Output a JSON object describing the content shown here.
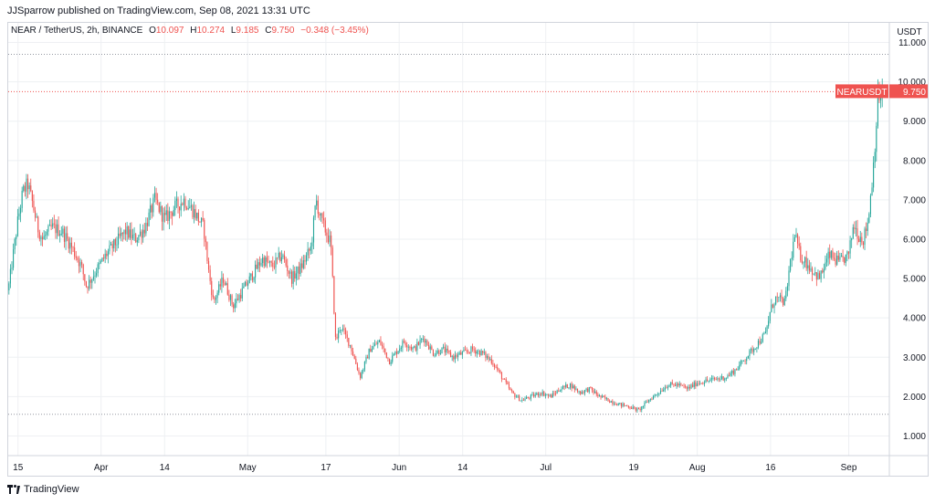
{
  "publisher": {
    "text": "JJSparrow published on TradingView.com, Sep 08, 2021 13:31 UTC"
  },
  "legend": {
    "symbol": "NEAR / TetherUS, 2h, BINANCE",
    "open_label": "O",
    "open": "10.097",
    "high_label": "H",
    "high": "10.274",
    "low_label": "L",
    "low": "9.185",
    "close_label": "C",
    "close": "9.750",
    "change": "−0.348 (−3.45%)"
  },
  "footer": {
    "brand": "TradingView"
  },
  "colors": {
    "up": "#26a69a",
    "down": "#ef5350",
    "grid": "#eef0f3",
    "axis_text": "#131722",
    "price_line": "#ef5350",
    "dotted_line": "#9598a1"
  },
  "chart_data": {
    "type": "candlestick",
    "symbol": "NEARUSDT",
    "currency": "USDT",
    "interval": "2h",
    "exchange": "BINANCE",
    "last_price": 9.75,
    "last_price_label": "9.750",
    "high_line": 10.7,
    "low_line": 1.55,
    "ylim": [
      0.5,
      11.5
    ],
    "y_ticks": [
      {
        "value": 1,
        "label": "1.000"
      },
      {
        "value": 2,
        "label": "2.000"
      },
      {
        "value": 3,
        "label": "3.000"
      },
      {
        "value": 4,
        "label": "4.000"
      },
      {
        "value": 5,
        "label": "5.000"
      },
      {
        "value": 6,
        "label": "6.000"
      },
      {
        "value": 7,
        "label": "7.000"
      },
      {
        "value": 8,
        "label": "8.000"
      },
      {
        "value": 9,
        "label": "9.000"
      },
      {
        "value": 10,
        "label": "10.000"
      },
      {
        "value": 11,
        "label": "11.000"
      }
    ],
    "x_range": [
      "2021-03-13",
      "2021-09-08"
    ],
    "x_ticks": [
      {
        "date": "2021-03-15",
        "label": "15"
      },
      {
        "date": "2021-04-01",
        "label": "Apr"
      },
      {
        "date": "2021-04-14",
        "label": "14"
      },
      {
        "date": "2021-05-01",
        "label": "May"
      },
      {
        "date": "2021-05-17",
        "label": "17"
      },
      {
        "date": "2021-06-01",
        "label": "Jun"
      },
      {
        "date": "2021-06-14",
        "label": "14"
      },
      {
        "date": "2021-07-01",
        "label": "Jul"
      },
      {
        "date": "2021-07-19",
        "label": "19"
      },
      {
        "date": "2021-08-01",
        "label": "Aug"
      },
      {
        "date": "2021-08-16",
        "label": "16"
      },
      {
        "date": "2021-09-01",
        "label": "Sep"
      }
    ],
    "price_path": [
      [
        "2021-03-13",
        4.7
      ],
      [
        "2021-03-14",
        5.6
      ],
      [
        "2021-03-15",
        6.5
      ],
      [
        "2021-03-16",
        7.2
      ],
      [
        "2021-03-17",
        7.4
      ],
      [
        "2021-03-18",
        6.9
      ],
      [
        "2021-03-19",
        6.3
      ],
      [
        "2021-03-20",
        6.0
      ],
      [
        "2021-03-22",
        6.3
      ],
      [
        "2021-03-24",
        6.2
      ],
      [
        "2021-03-26",
        5.8
      ],
      [
        "2021-03-28",
        5.3
      ],
      [
        "2021-03-29",
        4.8
      ],
      [
        "2021-03-31",
        5.2
      ],
      [
        "2021-04-02",
        5.6
      ],
      [
        "2021-04-04",
        5.9
      ],
      [
        "2021-04-06",
        6.2
      ],
      [
        "2021-04-08",
        6.0
      ],
      [
        "2021-04-10",
        6.3
      ],
      [
        "2021-04-12",
        7.0
      ],
      [
        "2021-04-14",
        6.5
      ],
      [
        "2021-04-16",
        6.8
      ],
      [
        "2021-04-18",
        7.0
      ],
      [
        "2021-04-20",
        6.7
      ],
      [
        "2021-04-22",
        6.3
      ],
      [
        "2021-04-23",
        5.2
      ],
      [
        "2021-04-24",
        4.4
      ],
      [
        "2021-04-26",
        5.0
      ],
      [
        "2021-04-28",
        4.3
      ],
      [
        "2021-04-30",
        4.7
      ],
      [
        "2021-05-02",
        5.1
      ],
      [
        "2021-05-04",
        5.5
      ],
      [
        "2021-05-06",
        5.3
      ],
      [
        "2021-05-08",
        5.6
      ],
      [
        "2021-05-10",
        5.0
      ],
      [
        "2021-05-12",
        5.3
      ],
      [
        "2021-05-14",
        5.8
      ],
      [
        "2021-05-15",
        7.0
      ],
      [
        "2021-05-16",
        6.5
      ],
      [
        "2021-05-17",
        6.2
      ],
      [
        "2021-05-18",
        5.9
      ],
      [
        "2021-05-19",
        3.4
      ],
      [
        "2021-05-20",
        3.8
      ],
      [
        "2021-05-22",
        3.3
      ],
      [
        "2021-05-24",
        2.5
      ],
      [
        "2021-05-26",
        3.2
      ],
      [
        "2021-05-28",
        3.4
      ],
      [
        "2021-05-30",
        2.9
      ],
      [
        "2021-06-02",
        3.4
      ],
      [
        "2021-06-04",
        3.2
      ],
      [
        "2021-06-06",
        3.5
      ],
      [
        "2021-06-08",
        3.1
      ],
      [
        "2021-06-10",
        3.2
      ],
      [
        "2021-06-12",
        3.0
      ],
      [
        "2021-06-14",
        3.1
      ],
      [
        "2021-06-16",
        3.2
      ],
      [
        "2021-06-18",
        3.1
      ],
      [
        "2021-06-20",
        2.9
      ],
      [
        "2021-06-22",
        2.5
      ],
      [
        "2021-06-24",
        2.1
      ],
      [
        "2021-06-26",
        1.9
      ],
      [
        "2021-06-28",
        2.0
      ],
      [
        "2021-06-30",
        2.1
      ],
      [
        "2021-07-02",
        2.0
      ],
      [
        "2021-07-04",
        2.2
      ],
      [
        "2021-07-06",
        2.3
      ],
      [
        "2021-07-08",
        2.1
      ],
      [
        "2021-07-10",
        2.2
      ],
      [
        "2021-07-12",
        2.0
      ],
      [
        "2021-07-14",
        1.9
      ],
      [
        "2021-07-16",
        1.8
      ],
      [
        "2021-07-18",
        1.75
      ],
      [
        "2021-07-20",
        1.65
      ],
      [
        "2021-07-22",
        1.9
      ],
      [
        "2021-07-24",
        2.1
      ],
      [
        "2021-07-26",
        2.3
      ],
      [
        "2021-07-28",
        2.3
      ],
      [
        "2021-07-30",
        2.2
      ],
      [
        "2021-08-01",
        2.35
      ],
      [
        "2021-08-03",
        2.4
      ],
      [
        "2021-08-05",
        2.45
      ],
      [
        "2021-08-07",
        2.5
      ],
      [
        "2021-08-09",
        2.7
      ],
      [
        "2021-08-11",
        3.0
      ],
      [
        "2021-08-13",
        3.3
      ],
      [
        "2021-08-15",
        3.6
      ],
      [
        "2021-08-16",
        4.2
      ],
      [
        "2021-08-17",
        4.5
      ],
      [
        "2021-08-19",
        4.4
      ],
      [
        "2021-08-20",
        5.4
      ],
      [
        "2021-08-21",
        6.1
      ],
      [
        "2021-08-22",
        5.6
      ],
      [
        "2021-08-24",
        5.3
      ],
      [
        "2021-08-26",
        5.0
      ],
      [
        "2021-08-28",
        5.6
      ],
      [
        "2021-08-30",
        5.4
      ],
      [
        "2021-09-01",
        5.6
      ],
      [
        "2021-09-02",
        6.4
      ],
      [
        "2021-09-03",
        6.1
      ],
      [
        "2021-09-04",
        6.0
      ],
      [
        "2021-09-05",
        6.5
      ],
      [
        "2021-09-06",
        7.8
      ],
      [
        "2021-09-07",
        9.6
      ],
      [
        "2021-09-08",
        9.75
      ]
    ]
  }
}
